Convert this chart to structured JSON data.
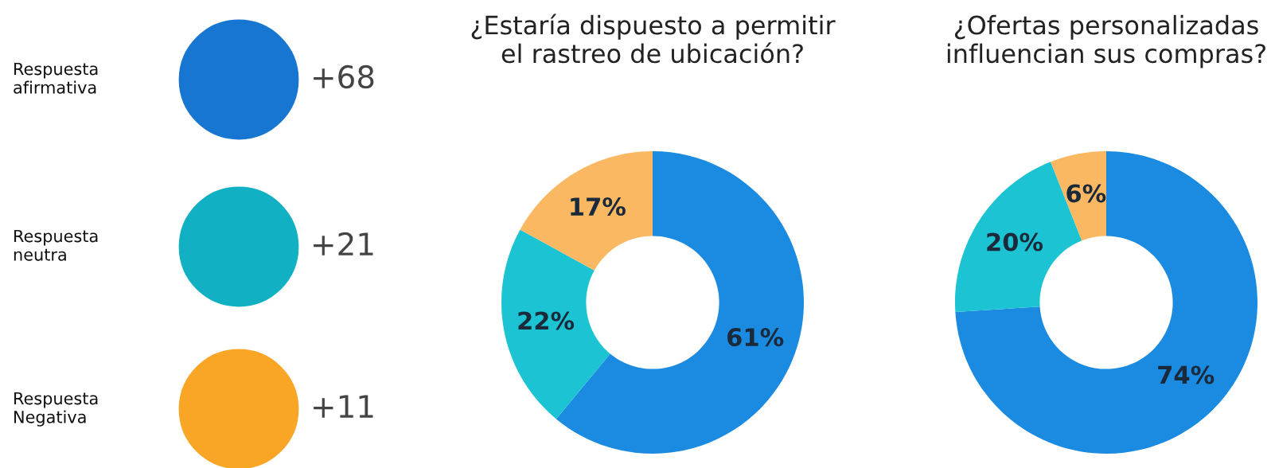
{
  "chart_data": [
    {
      "type": "other",
      "categories": [
        "Respuesta\nafirmativa",
        "Respuesta\nneutra",
        "Respuesta\nNegativa"
      ],
      "value_labels": [
        "+68",
        "+21",
        "+11"
      ],
      "colors": [
        "#1776d2",
        "#11b1c3",
        "#f9a627"
      ]
    },
    {
      "type": "donut",
      "title": "¿Estaría dispuesto a permitir\nel rastreo de ubicación?",
      "categories": [
        null,
        null,
        null
      ],
      "values": [
        61,
        22,
        17
      ],
      "value_labels": [
        "61%",
        "22%",
        "17%"
      ],
      "colors": [
        "#1a8be0",
        "#1cc3d3",
        "#fbb862"
      ]
    },
    {
      "type": "donut",
      "title": "¿Ofertas personalizadas\ninfluencian sus compras?",
      "categories": [
        null,
        null,
        null
      ],
      "values": [
        74,
        20,
        6
      ],
      "value_labels": [
        "74%",
        "20%",
        "6%"
      ],
      "colors": [
        "#1a8be0",
        "#1cc3d3",
        "#fbb862"
      ]
    }
  ]
}
